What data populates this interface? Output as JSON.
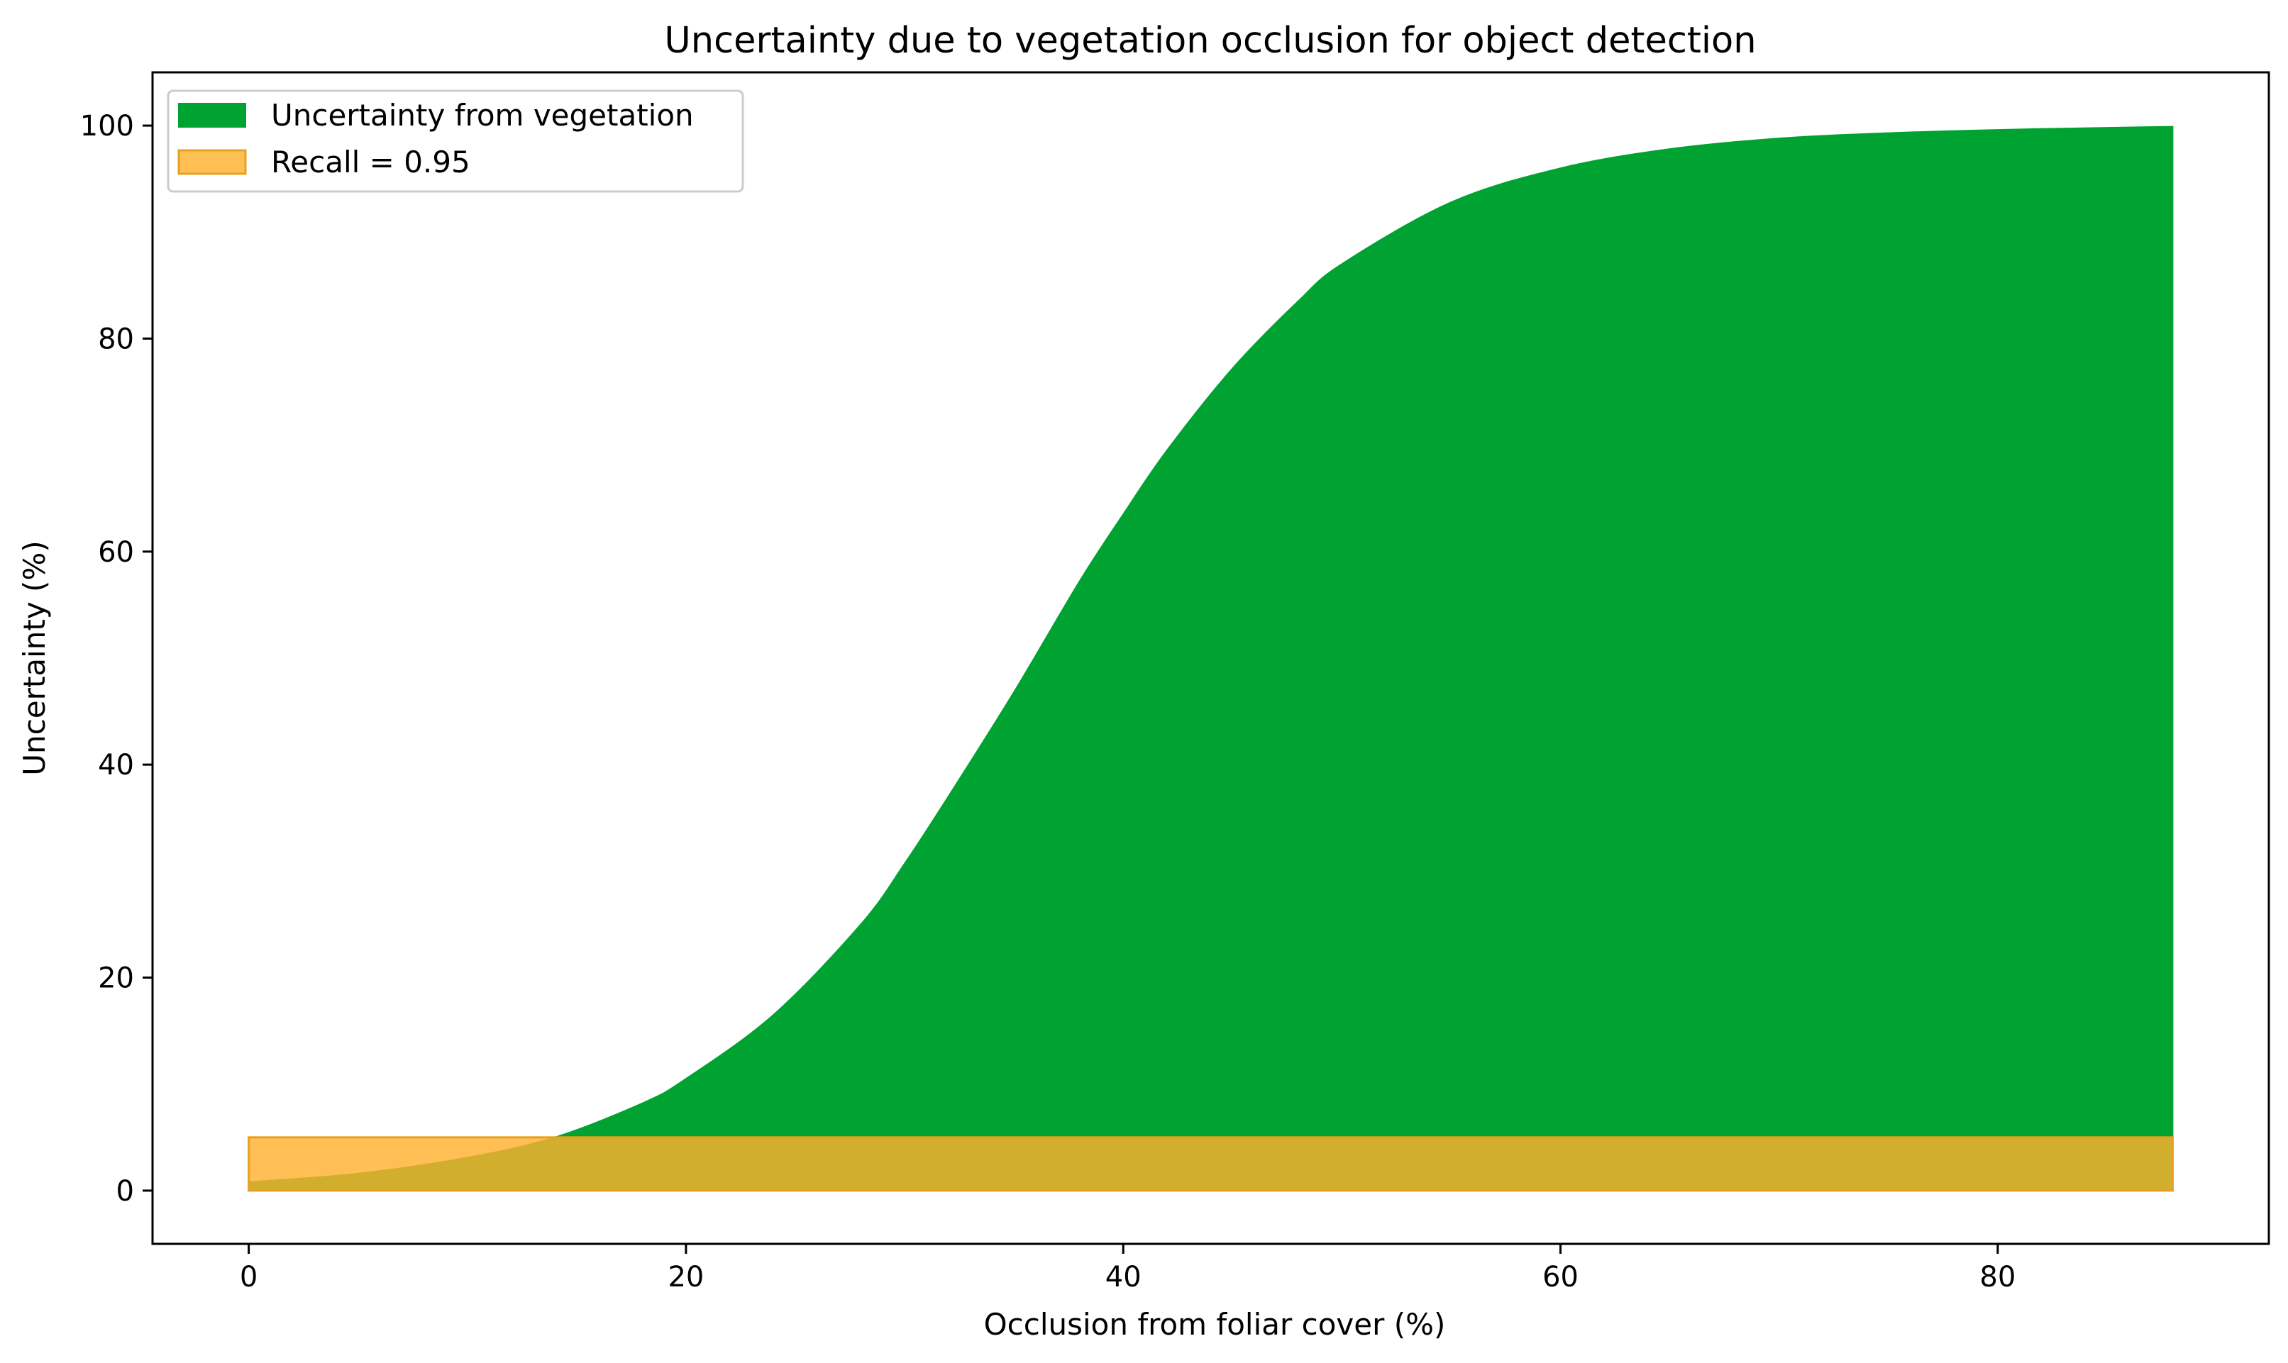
{
  "chart_data": {
    "type": "area",
    "title": "Uncertainty due to vegetation occlusion for object detection",
    "xlabel": "Occlusion from foliar cover (%)",
    "ylabel": "Uncertainty (%)",
    "xlim": [
      -4.4,
      92.4
    ],
    "ylim": [
      -5,
      105
    ],
    "x_ticks": [
      "0",
      "20",
      "40",
      "60",
      "80"
    ],
    "y_ticks": [
      "0",
      "20",
      "40",
      "60",
      "80",
      "100"
    ],
    "grid": false,
    "legend_position": "upper-left",
    "series": [
      {
        "name": "Uncertainty from vegetation",
        "color": "#00a331",
        "x": [
          0,
          5,
          10,
          14,
          18,
          20,
          24,
          28,
          30,
          32,
          35,
          38,
          40,
          42,
          45,
          48,
          50,
          55,
          60,
          65,
          70,
          75,
          80,
          85,
          88
        ],
        "y": [
          0.8,
          1.6,
          3.1,
          5.0,
          8.2,
          10.5,
          16.5,
          25,
          30.7,
          37,
          46.8,
          57.2,
          63.5,
          69.5,
          77.2,
          83.5,
          87.0,
          92.8,
          96.0,
          97.8,
          98.8,
          99.3,
          99.6,
          99.8,
          99.9
        ]
      },
      {
        "name": "Recall = 0.95",
        "color": "#ffb12e",
        "x": [
          0,
          88
        ],
        "y": [
          5,
          5
        ]
      }
    ]
  }
}
